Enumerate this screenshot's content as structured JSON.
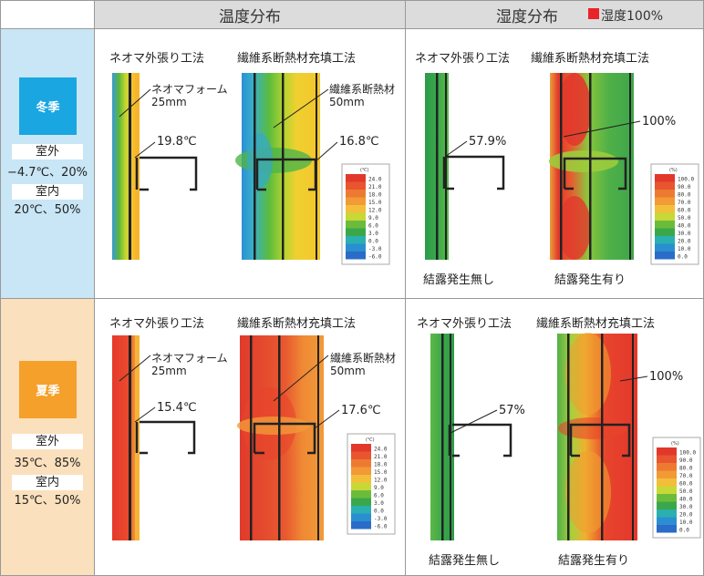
{
  "headers": {
    "temperature": "温度分布",
    "humidity": "湿度分布",
    "humidity_legend": "湿度100%"
  },
  "winter": {
    "season": "冬季",
    "outdoor_label": "室外",
    "outdoor_value": "−4.7℃、20%",
    "indoor_label": "室内",
    "indoor_value": "20℃、50%",
    "temp_neoma_title": "ネオマ外張り工法",
    "temp_fiber_title": "繊維系断熱材充填工法",
    "neoma_material": "ネオマフォーム",
    "neoma_thickness": "25mm",
    "fiber_material": "繊維系断熱材",
    "fiber_thickness": "50mm",
    "neoma_temp": "19.8℃",
    "fiber_temp": "16.8℃",
    "hum_neoma_title": "ネオマ外張り工法",
    "hum_fiber_title": "繊維系断熱材充填工法",
    "neoma_hum": "57.9%",
    "fiber_hum": "100%",
    "neoma_result": "結露発生無し",
    "fiber_result": "結露発生有り"
  },
  "summer": {
    "season": "夏季",
    "outdoor_label": "室外",
    "outdoor_value": "35℃、85%",
    "indoor_label": "室内",
    "indoor_value": "15℃、50%",
    "temp_neoma_title": "ネオマ外張り工法",
    "temp_fiber_title": "繊維系断熱材充填工法",
    "neoma_material": "ネオマフォーム",
    "neoma_thickness": "25mm",
    "fiber_material": "繊維系断熱材",
    "fiber_thickness": "50mm",
    "neoma_temp": "15.4℃",
    "fiber_temp": "17.6℃",
    "hum_neoma_title": "ネオマ外張り工法",
    "hum_fiber_title": "繊維系断熱材充填工法",
    "neoma_hum": "57%",
    "fiber_hum": "100%",
    "neoma_result": "結露発生無し",
    "fiber_result": "結露発生有り"
  },
  "temp_scale": {
    "unit": "(℃)",
    "ticks": [
      "24.0",
      "21.0",
      "18.0",
      "15.0",
      "12.0",
      "9.0",
      "6.0",
      "3.0",
      "0.0",
      "-3.0",
      "-6.0"
    ]
  },
  "hum_scale": {
    "unit": "(%)",
    "ticks": [
      "100.0",
      "90.0",
      "80.0",
      "70.0",
      "60.0",
      "50.0",
      "40.0",
      "30.0",
      "20.0",
      "10.0",
      "0.0"
    ]
  },
  "colors": {
    "header_bg": "#dcdcdc",
    "winter_bg": "#c8e6f5",
    "winter_badge": "#1aa6e0",
    "summer_bg": "#fbe0bd",
    "summer_badge": "#f5a02a",
    "legend_red": "#e8232a"
  }
}
